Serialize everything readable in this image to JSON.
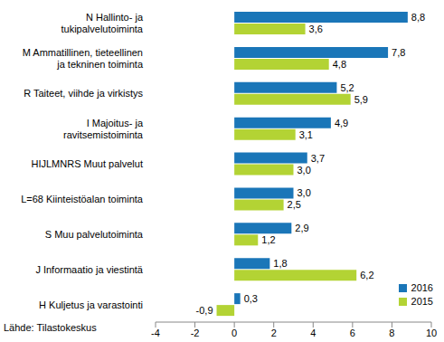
{
  "chart_data": {
    "type": "bar",
    "orientation": "horizontal",
    "data_labels": true,
    "legend": "lower right",
    "grid": false,
    "source": "Lähde: Tilastokeskus",
    "categories": [
      "N Hallinto- ja tukipalvelutoiminta",
      "M Ammatillinen, tieteellinen ja tekninen toiminta",
      "R Taiteet, viihde ja virkistys",
      "I Majoitus- ja ravitsemistoiminta",
      "HIJLMNRS Muut palvelut",
      "L=68 Kiinteistöalan toiminta",
      "S Muu palvelutoiminta",
      "J Informaatio ja viestintä",
      "H Kuljetus ja varastointi"
    ],
    "series": [
      {
        "name": "2016",
        "color": "#1a76b8",
        "values": [
          8.8,
          7.8,
          5.2,
          4.9,
          3.7,
          3.0,
          2.9,
          1.8,
          0.3
        ],
        "value_labels": [
          "8,8",
          "7,8",
          "5,2",
          "4,9",
          "3,7",
          "3,0",
          "2,9",
          "1,8",
          "0,3"
        ]
      },
      {
        "name": "2015",
        "color": "#b3d334",
        "values": [
          3.6,
          4.8,
          5.9,
          3.1,
          3.0,
          2.5,
          1.2,
          6.2,
          -0.9
        ],
        "value_labels": [
          "3,6",
          "4,8",
          "5,9",
          "3,1",
          "3,0",
          "2,5",
          "1,2",
          "6,2",
          "-0,9"
        ]
      }
    ],
    "xlim": [
      -4,
      10
    ],
    "xticks": [
      -4,
      -2,
      0,
      2,
      4,
      6,
      8,
      10
    ]
  }
}
